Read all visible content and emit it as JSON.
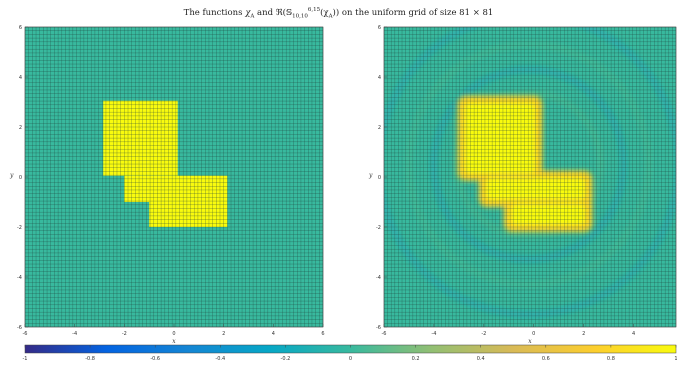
{
  "title": {
    "prefix": "The functions ",
    "chi": "χ",
    "chi_sub": "A",
    "mid": " and ℜ(𝕊",
    "s_sub": "10,10",
    "s_sup": "6,15",
    "after": "(χ",
    "after_sub": "A",
    "suffix": ")) on the uniform grid of size 81 × 81"
  },
  "chart_data": [
    {
      "type": "heatmap",
      "name": "characteristic-function",
      "grid_size": [
        81,
        81
      ],
      "x": {
        "label": "x",
        "lim": [
          -6,
          6
        ],
        "ticks": [
          -6,
          -4,
          -2,
          0,
          2,
          4,
          6
        ]
      },
      "y": {
        "label": "y",
        "lim": [
          -6,
          6
        ],
        "ticks": [
          -6,
          -4,
          -2,
          0,
          2,
          4,
          6
        ]
      },
      "support_rectangles": [
        {
          "x": [
            -2.85,
            0.15
          ],
          "y": [
            0.05,
            3.05
          ]
        },
        {
          "x": [
            -2.0,
            2.15
          ],
          "y": [
            -1.0,
            0.05
          ]
        },
        {
          "x": [
            -1.0,
            2.15
          ],
          "y": [
            -2.0,
            -1.0
          ]
        }
      ],
      "value_inside": 1,
      "value_outside": 0
    },
    {
      "type": "heatmap",
      "name": "approximation-real-part",
      "grid_size": [
        81,
        81
      ],
      "x": {
        "label": "x",
        "lim": [
          -6,
          5.7
        ],
        "ticks": [
          -6,
          -4,
          -2,
          0,
          2,
          4
        ]
      },
      "y": {
        "label": "y",
        "lim": [
          -6,
          6
        ],
        "ticks": [
          -6,
          -4,
          -2,
          0,
          2,
          4,
          6
        ]
      },
      "value_range": [
        -0.15,
        1.0
      ]
    }
  ],
  "colorbar": {
    "lim": [
      -1,
      1
    ],
    "ticks": [
      "-1",
      "-0.8",
      "-0.6",
      "-0.4",
      "-0.2",
      "0",
      "0.2",
      "0.4",
      "0.6",
      "0.8",
      "1"
    ],
    "colormap": "parula",
    "colors": [
      "#352a87",
      "#0363e1",
      "#1485d4",
      "#06a7c6",
      "#38b99e",
      "#92bf73",
      "#d9ba56",
      "#fcce2e",
      "#f9fb0e"
    ]
  }
}
